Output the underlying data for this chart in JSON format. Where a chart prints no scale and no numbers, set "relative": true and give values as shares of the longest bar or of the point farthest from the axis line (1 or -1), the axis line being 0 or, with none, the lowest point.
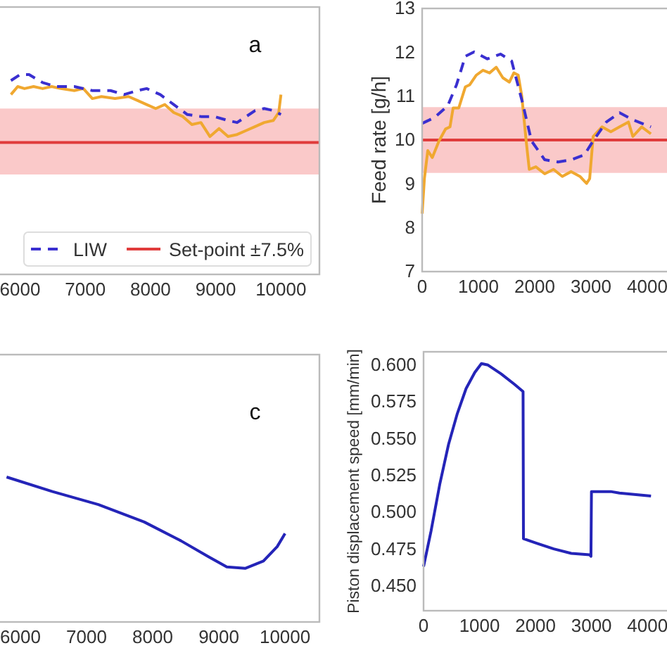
{
  "chart_data": [
    {
      "type": "line",
      "relative": true,
      "tick_labels": "x",
      "xlim": [
        5650,
        10590
      ],
      "xticks": [
        6000,
        7000,
        8000,
        9000,
        10000
      ],
      "legend": "bottom right",
      "annotations": [
        "a"
      ],
      "bands": [
        {
          "axis": "y",
          "from": 0.5,
          "to": 0.83,
          "color": "#f9c0c0"
        }
      ],
      "ref_lines": [
        {
          "axis": "y",
          "value": 0.66,
          "label": "Set-point ±7.5%",
          "color": "#e03c3c"
        }
      ],
      "series": [
        {
          "color": "#f0a830",
          "x": [
            5861,
            5965,
            6069,
            6208,
            6347,
            6485,
            6624,
            6832,
            6971,
            7109,
            7248,
            7456,
            7664,
            7803,
            7941,
            8080,
            8219,
            8357,
            8496,
            8635,
            8773,
            8912,
            9051,
            9189,
            9328,
            9467,
            9605,
            9744,
            9882,
            9966,
            10000
          ],
          "values": [
            0.9,
            0.94,
            0.93,
            0.94,
            0.93,
            0.94,
            0.93,
            0.92,
            0.93,
            0.88,
            0.89,
            0.88,
            0.89,
            0.87,
            0.85,
            0.83,
            0.85,
            0.81,
            0.79,
            0.75,
            0.76,
            0.69,
            0.73,
            0.69,
            0.7,
            0.72,
            0.74,
            0.76,
            0.77,
            0.81,
            0.9
          ]
        },
        {
          "name": "LIW",
          "color": "#3a2fd0",
          "line_style": "dashed",
          "x": [
            5861,
            6000,
            6139,
            6347,
            6555,
            6832,
            7109,
            7387,
            7595,
            7803,
            7941,
            8149,
            8357,
            8565,
            8773,
            8981,
            9189,
            9328,
            9467,
            9605,
            9744,
            9882,
            10000
          ],
          "values": [
            0.97,
            1.0,
            1.0,
            0.96,
            0.94,
            0.94,
            0.92,
            0.92,
            0.9,
            0.92,
            0.93,
            0.9,
            0.85,
            0.8,
            0.79,
            0.79,
            0.77,
            0.76,
            0.79,
            0.82,
            0.83,
            0.82,
            0.8
          ]
        }
      ]
    },
    {
      "type": "line",
      "xlim": [
        0,
        4400
      ],
      "xticks": [
        0,
        1000,
        2000,
        3000,
        4000
      ],
      "ylim": [
        7,
        13
      ],
      "yticks": [
        7,
        8,
        9,
        10,
        11,
        12,
        13
      ],
      "ylabel": "Feed rate [g/h]",
      "bands": [
        {
          "axis": "y",
          "from": 9.25,
          "to": 10.75,
          "color": "#f9c0c0"
        }
      ],
      "ref_lines": [
        {
          "axis": "y",
          "value": 10,
          "color": "#e03c3c"
        }
      ],
      "series": [
        {
          "color": "#f0a830",
          "x": [
            0,
            40,
            100,
            180,
            300,
            415,
            495,
            550,
            650,
            767,
            846,
            963,
            1081,
            1198,
            1316,
            1433,
            1550,
            1629,
            1707,
            1770,
            1848,
            1903,
            2020,
            2177,
            2334,
            2490,
            2647,
            2803,
            2921,
            2976,
            3038,
            3195,
            3352,
            3508,
            3665,
            3743,
            3900,
            4064
          ],
          "values": [
            8.32,
            9.12,
            9.76,
            9.6,
            9.98,
            10.25,
            10.3,
            10.73,
            10.73,
            11.21,
            11.26,
            11.48,
            11.59,
            11.53,
            11.66,
            11.42,
            11.32,
            11.53,
            11.48,
            11.0,
            9.98,
            9.33,
            9.39,
            9.23,
            9.33,
            9.17,
            9.28,
            9.17,
            9.01,
            9.12,
            10.08,
            10.3,
            10.19,
            10.3,
            10.41,
            10.08,
            10.3,
            10.14
          ]
        },
        {
          "color": "#3a2fd0",
          "line_style": "dashed",
          "x": [
            0,
            219,
            454,
            611,
            767,
            924,
            1159,
            1394,
            1590,
            1785,
            1942,
            2177,
            2412,
            2647,
            2882,
            3038,
            3273,
            3508,
            3743,
            4064
          ],
          "values": [
            10.38,
            10.51,
            10.78,
            11.26,
            11.91,
            12.01,
            11.85,
            11.96,
            11.8,
            10.84,
            9.98,
            9.55,
            9.5,
            9.55,
            9.66,
            9.98,
            10.41,
            10.62,
            10.46,
            10.3
          ]
        }
      ]
    },
    {
      "type": "line",
      "relative": true,
      "tick_labels": "x",
      "xlim": [
        5650,
        10520
      ],
      "xticks": [
        6000,
        7000,
        8000,
        9000,
        10000
      ],
      "annotations": [
        "c"
      ],
      "series": [
        {
          "color": "#2424b8",
          "x": [
            5792,
            6485,
            7179,
            7872,
            8427,
            8843,
            9120,
            9397,
            9674,
            9882,
            10000
          ],
          "values": [
            1.0,
            0.9,
            0.81,
            0.69,
            0.56,
            0.45,
            0.38,
            0.37,
            0.42,
            0.52,
            0.61
          ]
        }
      ]
    },
    {
      "type": "line",
      "xlim": [
        0,
        4400
      ],
      "xticks": [
        0,
        1000,
        2000,
        3000,
        4000
      ],
      "ylim": [
        0.433,
        0.609
      ],
      "yticks": [
        {
          "value": 0.45,
          "label": "0.450"
        },
        0.475,
        {
          "value": 0.5,
          "label": "0.500"
        },
        0.525,
        {
          "value": 0.55,
          "label": "0.550"
        },
        0.575,
        {
          "value": 0.6,
          "label": "0.600"
        }
      ],
      "ylabel": "Piston displacement speed [mm/min]",
      "series": [
        {
          "color": "#2424b8",
          "x": [
            0,
            133,
            290,
            446,
            603,
            760,
            916,
            1034,
            1151,
            1386,
            1621,
            1778,
            1785,
            2012,
            2326,
            2639,
            2968,
            2991,
            3000,
            3344,
            3500,
            4064
          ],
          "values": [
            0.463,
            0.487,
            0.519,
            0.546,
            0.567,
            0.584,
            0.595,
            0.601,
            0.6,
            0.594,
            0.587,
            0.582,
            0.482,
            0.479,
            0.475,
            0.472,
            0.471,
            0.47,
            0.514,
            0.514,
            0.513,
            0.511
          ]
        }
      ]
    }
  ]
}
